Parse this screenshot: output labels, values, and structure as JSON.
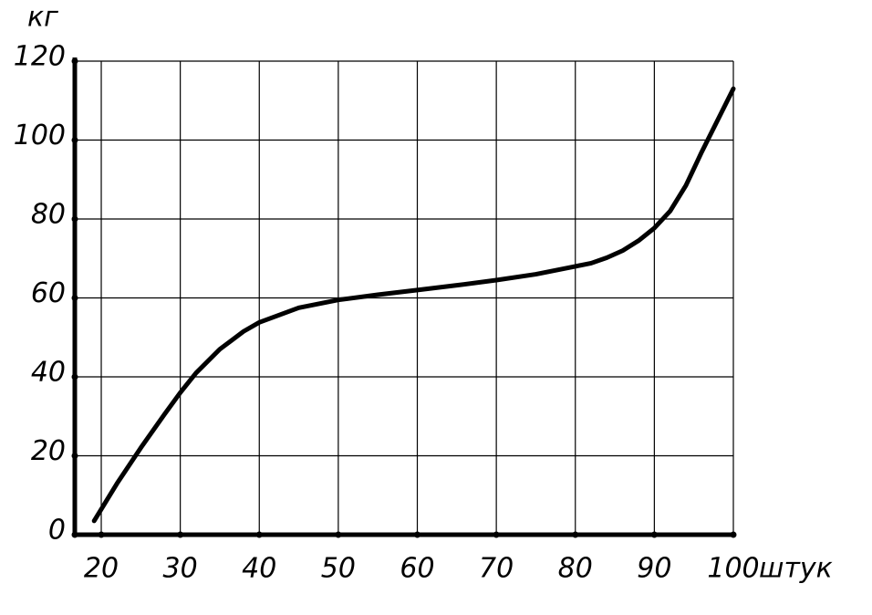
{
  "chart_data": {
    "type": "line",
    "x_label": "штук",
    "y_label": "кг",
    "x": [
      19.1,
      22,
      25,
      28,
      30,
      32,
      35,
      38,
      40,
      45,
      50,
      55,
      60,
      65,
      70,
      75,
      80,
      82,
      84,
      86,
      88,
      90,
      92,
      94,
      96,
      98,
      100
    ],
    "series": [
      {
        "name": "кг",
        "color": "#000000",
        "values": [
          3.5,
          13,
          22,
          30.5,
          36,
          41,
          47,
          51.5,
          53.8,
          57.5,
          59.5,
          60.8,
          62,
          63.2,
          64.5,
          66,
          68,
          68.8,
          70.2,
          72,
          74.5,
          77.7,
          82,
          88.5,
          97,
          105,
          113
        ]
      }
    ],
    "xlim": [
      16.65,
      100
    ],
    "xticks": [
      20,
      30,
      40,
      50,
      60,
      70,
      80,
      90,
      100
    ],
    "ylim": [
      0,
      120
    ],
    "yticks": [
      0,
      20,
      40,
      60,
      80,
      100,
      120
    ],
    "grid": true
  }
}
